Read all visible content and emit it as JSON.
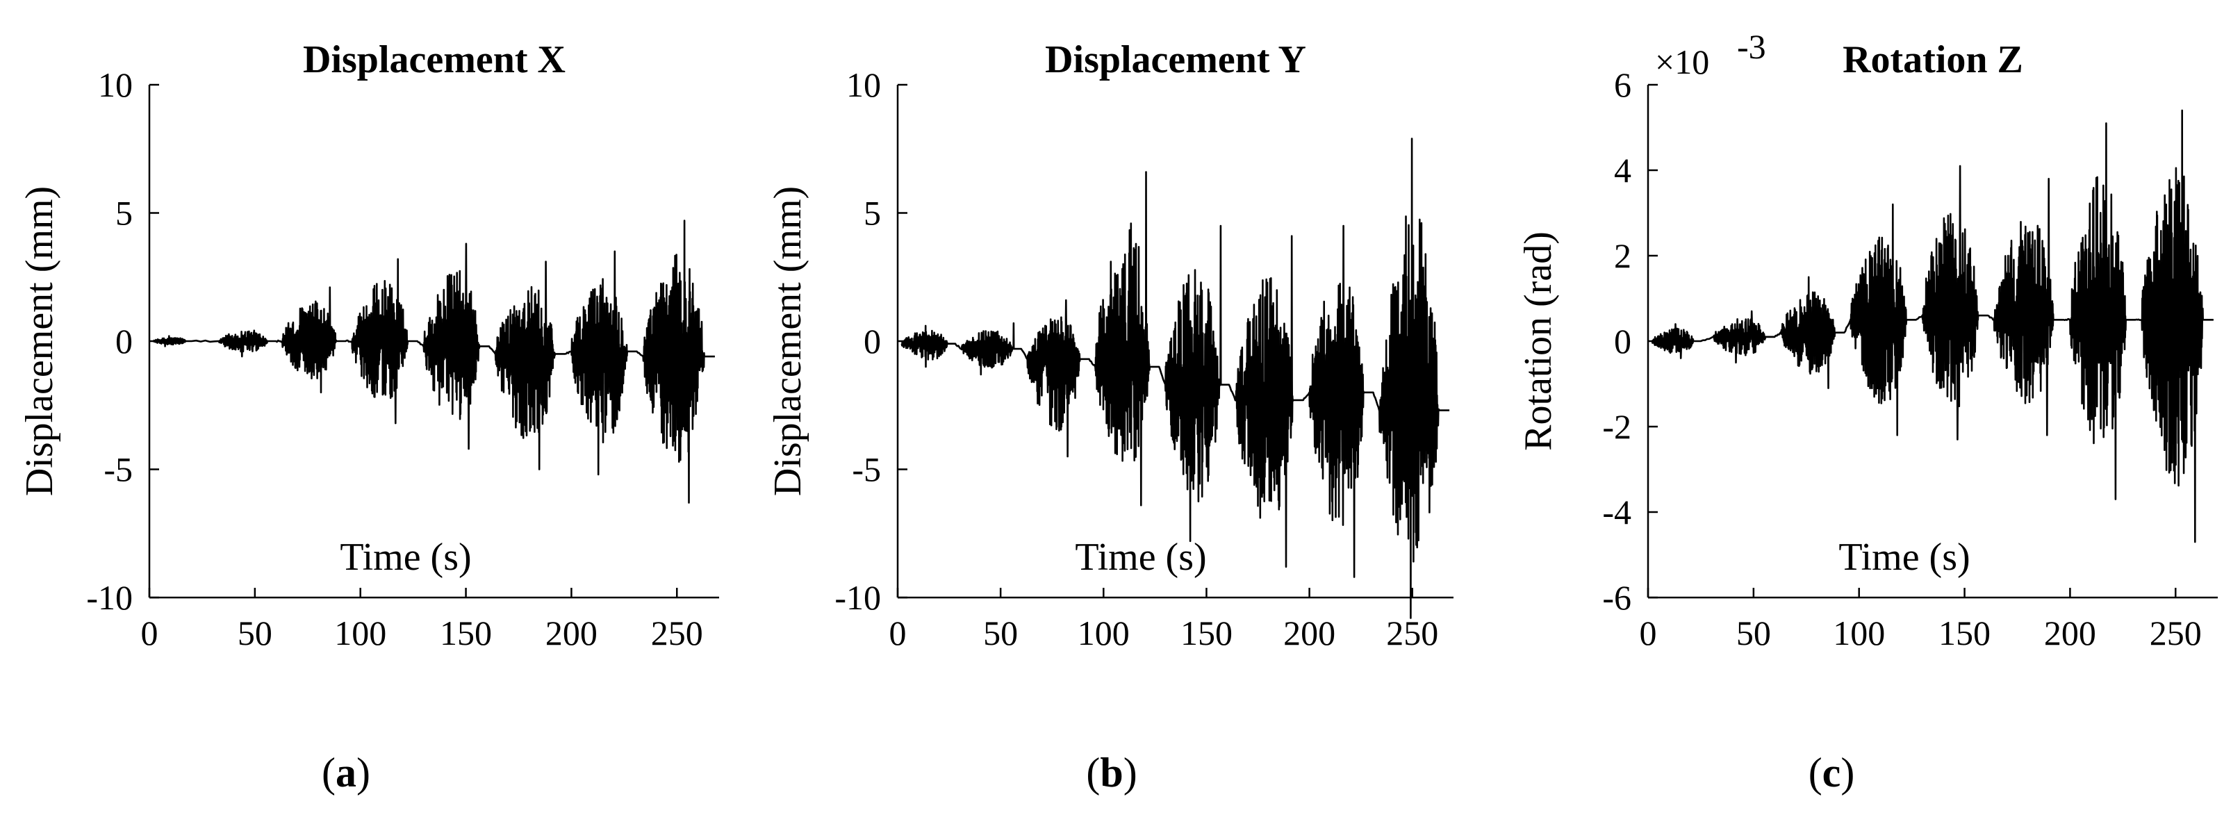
{
  "chart_data": [
    {
      "type": "line",
      "panel_label": "a",
      "title": "Displacement X",
      "xlabel": "Time (s)",
      "ylabel": "Displacement (mm)",
      "xlim": [
        0,
        270
      ],
      "ylim": [
        -10,
        10
      ],
      "xticks": [
        0,
        50,
        100,
        150,
        200,
        250
      ],
      "yticks": [
        -10,
        -5,
        0,
        5,
        10
      ],
      "xtick_labels": [
        "0",
        "50",
        "100",
        "150",
        "200",
        "250"
      ],
      "ytick_labels": [
        "-10",
        "-5",
        "0",
        "5",
        "10"
      ],
      "exponent_label": "",
      "series": [
        {
          "segments": [
            {
              "t0": 2,
              "t1": 20,
              "mean": 0.0,
              "min": -0.2,
              "max": 0.2
            },
            {
              "t0": 33,
              "t1": 60,
              "mean": 0.0,
              "min": -0.6,
              "max": 0.6
            },
            {
              "t0": 63,
              "t1": 93,
              "mean": 0.0,
              "min": -2.0,
              "max": 2.1
            },
            {
              "t0": 96,
              "t1": 127,
              "mean": 0.0,
              "min": -3.2,
              "max": 3.2
            },
            {
              "t0": 130,
              "t1": 161,
              "mean": -0.2,
              "min": -4.2,
              "max": 3.8
            },
            {
              "t0": 164,
              "t1": 197,
              "mean": -0.5,
              "min": -5.0,
              "max": 3.1
            },
            {
              "t0": 200,
              "t1": 231,
              "mean": -0.4,
              "min": -5.2,
              "max": 3.5
            },
            {
              "t0": 234,
              "t1": 268,
              "mean": -0.6,
              "min": -6.3,
              "max": 4.7
            }
          ]
        }
      ]
    },
    {
      "type": "line",
      "panel_label": "b",
      "title": "Displacement Y",
      "xlabel": "Time (s)",
      "ylabel": "Displacement (mm)",
      "xlim": [
        0,
        270
      ],
      "ylim": [
        -10,
        10
      ],
      "xticks": [
        0,
        50,
        100,
        150,
        200,
        250
      ],
      "yticks": [
        -10,
        -5,
        0,
        5,
        10
      ],
      "xtick_labels": [
        "0",
        "50",
        "100",
        "150",
        "200",
        "250"
      ],
      "ytick_labels": [
        "-10",
        "-5",
        "0",
        "5",
        "10"
      ],
      "exponent_label": "",
      "series": [
        {
          "segments": [
            {
              "t0": 2,
              "t1": 28,
              "mean": -0.1,
              "min": -1.0,
              "max": 0.6
            },
            {
              "t0": 31,
              "t1": 60,
              "mean": -0.3,
              "min": -1.3,
              "max": 0.7
            },
            {
              "t0": 63,
              "t1": 93,
              "mean": -0.7,
              "min": -4.5,
              "max": 1.6
            },
            {
              "t0": 96,
              "t1": 127,
              "mean": -1.0,
              "min": -6.4,
              "max": 6.6
            },
            {
              "t0": 130,
              "t1": 161,
              "mean": -1.7,
              "min": -7.8,
              "max": 4.5
            },
            {
              "t0": 164,
              "t1": 197,
              "mean": -2.3,
              "min": -8.8,
              "max": 4.1
            },
            {
              "t0": 200,
              "t1": 231,
              "mean": -2.0,
              "min": -9.2,
              "max": 4.5
            },
            {
              "t0": 234,
              "t1": 268,
              "mean": -2.7,
              "min": -10.8,
              "max": 7.9
            }
          ]
        }
      ]
    },
    {
      "type": "line",
      "panel_label": "c",
      "title": "Rotation Z",
      "xlabel": "Time (s)",
      "ylabel": "Rotation (rad)",
      "xlim": [
        0,
        270
      ],
      "ylim": [
        -6,
        6
      ],
      "xticks": [
        0,
        50,
        100,
        150,
        200,
        250
      ],
      "yticks": [
        -6,
        -4,
        -2,
        0,
        2,
        4,
        6
      ],
      "xtick_labels": [
        "0",
        "50",
        "100",
        "150",
        "200",
        "250"
      ],
      "ytick_labels": [
        "-6",
        "-4",
        "-2",
        "0",
        "2",
        "4",
        "6"
      ],
      "exponent_label": "×10",
      "exponent_power": "-3",
      "series": [
        {
          "segments": [
            {
              "t0": 2,
              "t1": 25,
              "mean": 0.0,
              "min": -0.4,
              "max": 0.4
            },
            {
              "t0": 31,
              "t1": 60,
              "mean": 0.1,
              "min": -0.5,
              "max": 0.7
            },
            {
              "t0": 63,
              "t1": 93,
              "mean": 0.2,
              "min": -1.1,
              "max": 1.5
            },
            {
              "t0": 96,
              "t1": 127,
              "mean": 0.5,
              "min": -2.2,
              "max": 3.2
            },
            {
              "t0": 130,
              "t1": 161,
              "mean": 0.6,
              "min": -2.3,
              "max": 4.1
            },
            {
              "t0": 164,
              "t1": 197,
              "mean": 0.5,
              "min": -2.2,
              "max": 3.8
            },
            {
              "t0": 200,
              "t1": 231,
              "mean": 0.5,
              "min": -3.7,
              "max": 5.1
            },
            {
              "t0": 234,
              "t1": 268,
              "mean": 0.5,
              "min": -4.7,
              "max": 5.4
            }
          ]
        }
      ]
    }
  ]
}
